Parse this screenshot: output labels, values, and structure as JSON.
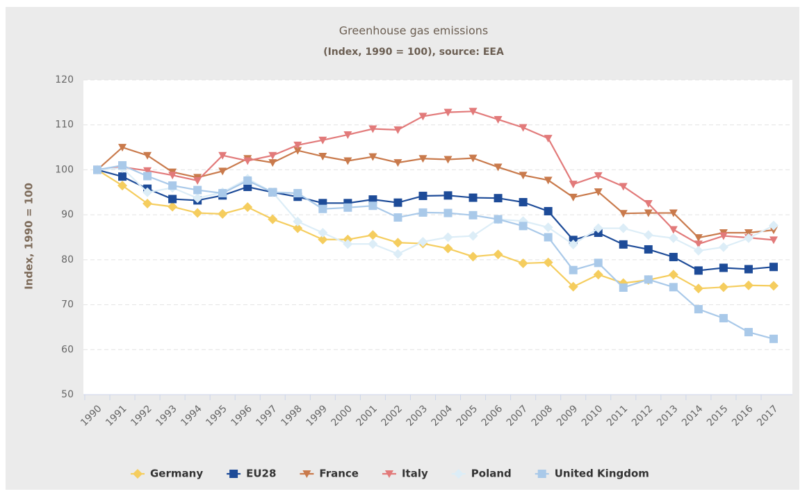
{
  "chart_data": {
    "type": "line",
    "title": "Greenhouse gas emissions",
    "subtitle": "(Index, 1990 = 100), source: EEA",
    "y_label": "Index, 1990 = 100",
    "categories": [
      "1990",
      "1991",
      "1992",
      "1993",
      "1994",
      "1995",
      "1996",
      "1997",
      "1998",
      "1999",
      "2000",
      "2001",
      "2002",
      "2003",
      "2004",
      "2005",
      "2006",
      "2007",
      "2008",
      "2009",
      "2010",
      "2011",
      "2012",
      "2013",
      "2014",
      "2015",
      "2016",
      "2017"
    ],
    "ylim": [
      50,
      120
    ],
    "yticks": [
      50,
      60,
      70,
      80,
      90,
      100,
      110,
      120
    ],
    "grid": true,
    "legend": "bottom",
    "series": [
      {
        "name": "Germany",
        "color": "#f5cd5e",
        "marker": "diamond",
        "values": [
          100,
          96.5,
          92.5,
          91.8,
          90.4,
          90.2,
          91.7,
          89,
          87,
          84.5,
          84.5,
          85.5,
          83.8,
          83.6,
          82.5,
          80.7,
          81.2,
          79.2,
          79.4,
          74,
          76.7,
          74.8,
          75.5,
          76.7,
          73.6,
          73.9,
          74.3,
          74.2
        ]
      },
      {
        "name": "EU28",
        "color": "#1d4b98",
        "marker": "square",
        "values": [
          100,
          98.5,
          95.8,
          93.5,
          93.2,
          94.3,
          96.2,
          95,
          94,
          92.6,
          92.6,
          93.4,
          92.7,
          94.2,
          94.3,
          93.8,
          93.7,
          92.8,
          90.8,
          84.4,
          86,
          83.4,
          82.3,
          80.6,
          77.6,
          78.2,
          77.9,
          78.4
        ]
      },
      {
        "name": "France",
        "color": "#c97a4c",
        "marker": "triangle-down",
        "values": [
          100,
          105,
          103.2,
          99.5,
          98.3,
          99.7,
          102.5,
          101.6,
          104.3,
          103,
          102,
          102.9,
          101.6,
          102.5,
          102.3,
          102.6,
          100.6,
          98.8,
          97.7,
          93.9,
          95.1,
          90.3,
          90.4,
          90.4,
          84.9,
          86,
          86,
          86.6
        ]
      },
      {
        "name": "Italy",
        "color": "#e27a7a",
        "marker": "triangle-down",
        "values": [
          100,
          100.6,
          99.8,
          98.8,
          97.6,
          103.2,
          102,
          103.2,
          105.5,
          106.6,
          107.8,
          109.1,
          108.9,
          111.9,
          112.8,
          113,
          111.2,
          109.4,
          107,
          96.8,
          98.7,
          96.3,
          92.5,
          86.7,
          83.5,
          85.3,
          84.9,
          84.4
        ]
      },
      {
        "name": "Poland",
        "color": "#dcedf7",
        "marker": "diamond",
        "values": [
          100,
          100.4,
          95,
          96,
          93.7,
          95,
          98,
          95,
          88.5,
          86,
          83.5,
          83.5,
          81.3,
          84,
          85,
          85.3,
          89,
          88.6,
          87.2,
          83.4,
          87,
          87,
          85.5,
          84.8,
          82,
          82.8,
          84.8,
          87.6
        ]
      },
      {
        "name": "United Kingdom",
        "color": "#a9c9e9",
        "marker": "square",
        "values": [
          100,
          101,
          98.6,
          96.5,
          95.5,
          94.8,
          97.6,
          95,
          94.8,
          91.3,
          91.6,
          92,
          89.4,
          90.5,
          90.4,
          89.9,
          89,
          87.5,
          85,
          77.7,
          79.3,
          73.8,
          75.6,
          73.9,
          69,
          67,
          63.9,
          62.4
        ]
      }
    ]
  }
}
